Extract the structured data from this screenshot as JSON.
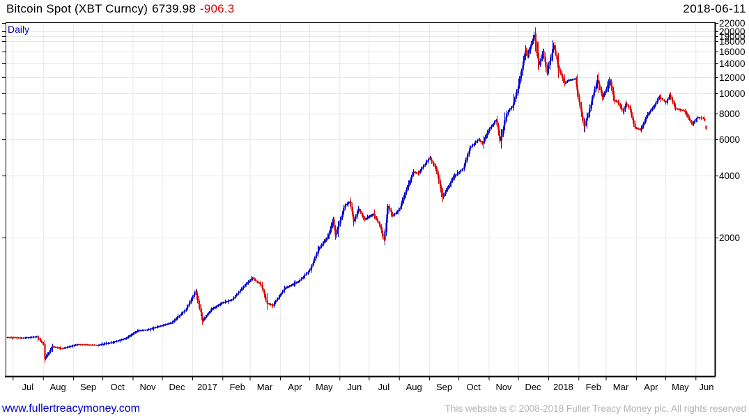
{
  "header": {
    "instrument": "Bitcoin Spot (XBT Curncy)",
    "last_price": "6739.98",
    "change": "-906.3",
    "date": "2018-06-11",
    "timeframe": "Daily"
  },
  "footer": {
    "link": "www.fullertreacymoney.com",
    "copyright": "This website is © 2008-2018 Fuller Treacy Money plc. All rights reserved"
  },
  "chart_data": {
    "type": "candlestick",
    "interval": "daily",
    "title": "Bitcoin Spot (XBT Curncy)",
    "last_close": 6739.98,
    "last_change": -906.3,
    "last_date": "2018-06-11",
    "x_range": [
      "2016-06-24",
      "2018-06-22"
    ],
    "y_axis": {
      "scale": "log",
      "side": "right",
      "ticks": [
        2000,
        4000,
        6000,
        8000,
        10000,
        12000,
        14000,
        16000,
        18000,
        19000,
        20000,
        22000
      ]
    },
    "x_tick_labels": [
      "Jul",
      "Aug",
      "Sep",
      "Oct",
      "Nov",
      "Dec",
      "2017",
      "Feb",
      "Mar",
      "Apr",
      "May",
      "Jun",
      "Jul",
      "Aug",
      "Sep",
      "Oct",
      "Nov",
      "Dec",
      "2018",
      "Feb",
      "Mar",
      "Apr",
      "May",
      "Jun"
    ],
    "grid": true,
    "up_color": "#0000cc",
    "down_color": "#dd0000",
    "grid_color": "#e7e7e7",
    "anchors": [
      [
        "2016-06-25",
        655
      ],
      [
        "2016-07-10",
        650
      ],
      [
        "2016-07-25",
        660
      ],
      [
        "2016-08-01",
        607
      ],
      [
        "2016-08-02",
        515
      ],
      [
        "2016-08-10",
        590
      ],
      [
        "2016-08-20",
        578
      ],
      [
        "2016-09-05",
        605
      ],
      [
        "2016-09-25",
        600
      ],
      [
        "2016-10-10",
        618
      ],
      [
        "2016-10-25",
        650
      ],
      [
        "2016-11-05",
        705
      ],
      [
        "2016-11-15",
        712
      ],
      [
        "2016-11-25",
        735
      ],
      [
        "2016-12-10",
        770
      ],
      [
        "2016-12-25",
        895
      ],
      [
        "2017-01-04",
        1100
      ],
      [
        "2017-01-11",
        790
      ],
      [
        "2017-01-20",
        895
      ],
      [
        "2017-01-31",
        965
      ],
      [
        "2017-02-10",
        995
      ],
      [
        "2017-02-24",
        1180
      ],
      [
        "2017-03-03",
        1270
      ],
      [
        "2017-03-12",
        1180
      ],
      [
        "2017-03-18",
        960
      ],
      [
        "2017-03-24",
        935
      ],
      [
        "2017-04-05",
        1130
      ],
      [
        "2017-04-20",
        1230
      ],
      [
        "2017-05-01",
        1390
      ],
      [
        "2017-05-10",
        1760
      ],
      [
        "2017-05-20",
        2040
      ],
      [
        "2017-05-25",
        2450
      ],
      [
        "2017-05-27",
        2050
      ],
      [
        "2017-06-06",
        2870
      ],
      [
        "2017-06-11",
        2980
      ],
      [
        "2017-06-15",
        2400
      ],
      [
        "2017-06-20",
        2750
      ],
      [
        "2017-06-26",
        2450
      ],
      [
        "2017-07-05",
        2600
      ],
      [
        "2017-07-11",
        2330
      ],
      [
        "2017-07-16",
        1950
      ],
      [
        "2017-07-20",
        2850
      ],
      [
        "2017-07-25",
        2550
      ],
      [
        "2017-08-01",
        2750
      ],
      [
        "2017-08-08",
        3420
      ],
      [
        "2017-08-15",
        4160
      ],
      [
        "2017-08-20",
        4100
      ],
      [
        "2017-09-01",
        4900
      ],
      [
        "2017-09-08",
        4230
      ],
      [
        "2017-09-14",
        3150
      ],
      [
        "2017-09-21",
        3600
      ],
      [
        "2017-09-25",
        3930
      ],
      [
        "2017-10-05",
        4320
      ],
      [
        "2017-10-12",
        5440
      ],
      [
        "2017-10-21",
        6000
      ],
      [
        "2017-10-25",
        5730
      ],
      [
        "2017-11-01",
        6750
      ],
      [
        "2017-11-08",
        7450
      ],
      [
        "2017-11-12",
        5880
      ],
      [
        "2017-11-19",
        8040
      ],
      [
        "2017-11-25",
        8760
      ],
      [
        "2017-12-01",
        10900
      ],
      [
        "2017-12-08",
        16200
      ],
      [
        "2017-12-10",
        15200
      ],
      [
        "2017-12-17",
        19300
      ],
      [
        "2017-12-22",
        13800
      ],
      [
        "2017-12-26",
        16100
      ],
      [
        "2017-12-30",
        12600
      ],
      [
        "2018-01-06",
        17150
      ],
      [
        "2018-01-11",
        13300
      ],
      [
        "2018-01-17",
        11200
      ],
      [
        "2018-01-21",
        11600
      ],
      [
        "2018-01-28",
        11800
      ],
      [
        "2018-02-01",
        9100
      ],
      [
        "2018-02-06",
        6950
      ],
      [
        "2018-02-11",
        8100
      ],
      [
        "2018-02-16",
        10100
      ],
      [
        "2018-02-20",
        11600
      ],
      [
        "2018-02-25",
        9650
      ],
      [
        "2018-03-05",
        11500
      ],
      [
        "2018-03-09",
        9250
      ],
      [
        "2018-03-12",
        9150
      ],
      [
        "2018-03-18",
        8200
      ],
      [
        "2018-03-21",
        8950
      ],
      [
        "2018-03-25",
        8450
      ],
      [
        "2018-03-30",
        6850
      ],
      [
        "2018-04-05",
        6650
      ],
      [
        "2018-04-12",
        7900
      ],
      [
        "2018-04-20",
        8850
      ],
      [
        "2018-04-24",
        9650
      ],
      [
        "2018-05-01",
        9050
      ],
      [
        "2018-05-05",
        9850
      ],
      [
        "2018-05-11",
        8450
      ],
      [
        "2018-05-20",
        8250
      ],
      [
        "2018-05-28",
        7100
      ],
      [
        "2018-06-02",
        7650
      ],
      [
        "2018-06-08",
        7600
      ],
      [
        "2018-06-10",
        7450
      ],
      [
        "2018-06-11",
        6740
      ]
    ]
  }
}
